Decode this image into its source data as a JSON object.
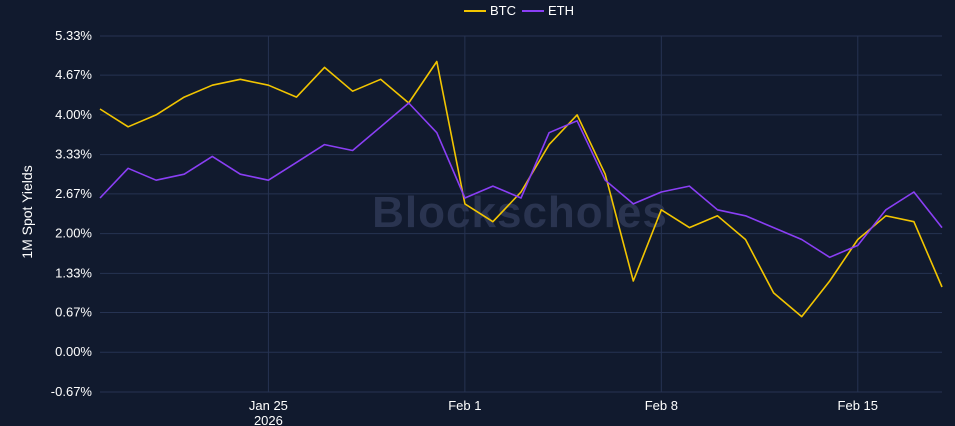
{
  "chart_data": {
    "type": "line",
    "title": "",
    "xlabel": "",
    "ylabel": "1M Spot Yields",
    "watermark": "Blockscholes",
    "grid": true,
    "legend": {
      "position": "top-center"
    },
    "ylim": [
      -0.67,
      5.33
    ],
    "y_ticks": [
      "-0.67%",
      "0.00%",
      "0.67%",
      "1.33%",
      "2.00%",
      "2.67%",
      "3.33%",
      "4.00%",
      "4.67%",
      "5.33%"
    ],
    "y_tick_values": [
      -0.67,
      0.0,
      0.67,
      1.33,
      2.0,
      2.67,
      3.33,
      4.0,
      4.67,
      5.33
    ],
    "xlim": [
      "2026-01-19",
      "2026-02-18"
    ],
    "x_ticks": [
      {
        "date": "2026-01-25",
        "label": "Jan 25",
        "sublabel": "2026"
      },
      {
        "date": "2026-02-01",
        "label": "Feb 1",
        "sublabel": ""
      },
      {
        "date": "2026-02-08",
        "label": "Feb 8",
        "sublabel": ""
      },
      {
        "date": "2026-02-15",
        "label": "Feb 15",
        "sublabel": ""
      }
    ],
    "series": [
      {
        "name": "BTC",
        "color": "#f2c500",
        "x": [
          "2026-01-19",
          "2026-01-20",
          "2026-01-21",
          "2026-01-22",
          "2026-01-23",
          "2026-01-24",
          "2026-01-25",
          "2026-01-26",
          "2026-01-27",
          "2026-01-28",
          "2026-01-29",
          "2026-01-30",
          "2026-01-31",
          "2026-02-01",
          "2026-02-02",
          "2026-02-03",
          "2026-02-04",
          "2026-02-05",
          "2026-02-06",
          "2026-02-07",
          "2026-02-08",
          "2026-02-09",
          "2026-02-10",
          "2026-02-11",
          "2026-02-12",
          "2026-02-13",
          "2026-02-14",
          "2026-02-15",
          "2026-02-16",
          "2026-02-17",
          "2026-02-18"
        ],
        "values": [
          4.1,
          3.8,
          4.0,
          4.3,
          4.5,
          4.6,
          4.5,
          4.3,
          4.8,
          4.4,
          4.6,
          4.2,
          4.9,
          2.5,
          2.2,
          2.7,
          3.5,
          4.0,
          3.0,
          1.2,
          2.4,
          2.1,
          2.3,
          1.9,
          1.0,
          0.6,
          1.2,
          1.9,
          2.3,
          2.2,
          1.1
        ]
      },
      {
        "name": "ETH",
        "color": "#8a3ff5",
        "x": [
          "2026-01-19",
          "2026-01-20",
          "2026-01-21",
          "2026-01-22",
          "2026-01-23",
          "2026-01-24",
          "2026-01-25",
          "2026-01-26",
          "2026-01-27",
          "2026-01-28",
          "2026-01-29",
          "2026-01-30",
          "2026-01-31",
          "2026-02-01",
          "2026-02-02",
          "2026-02-03",
          "2026-02-04",
          "2026-02-05",
          "2026-02-06",
          "2026-02-07",
          "2026-02-08",
          "2026-02-09",
          "2026-02-10",
          "2026-02-11",
          "2026-02-12",
          "2026-02-13",
          "2026-02-14",
          "2026-02-15",
          "2026-02-16",
          "2026-02-17",
          "2026-02-18"
        ],
        "values": [
          2.6,
          3.1,
          2.9,
          3.0,
          3.3,
          3.0,
          2.9,
          3.2,
          3.5,
          3.4,
          3.8,
          4.2,
          3.7,
          2.6,
          2.8,
          2.6,
          3.7,
          3.9,
          2.9,
          2.5,
          2.7,
          2.8,
          2.4,
          2.3,
          2.1,
          1.9,
          1.6,
          1.8,
          2.4,
          2.7,
          2.1
        ]
      }
    ]
  }
}
